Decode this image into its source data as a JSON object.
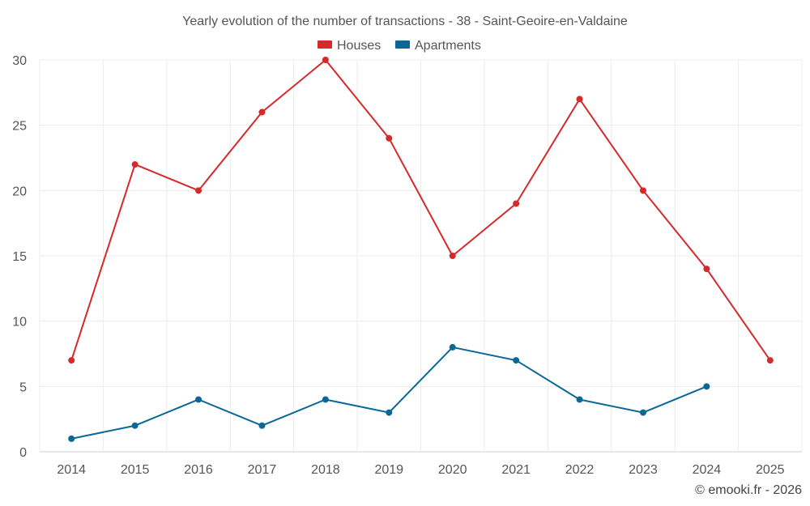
{
  "chart_data": {
    "type": "line",
    "title": "Yearly evolution of the number of transactions - 38 - Saint-Geoire-en-Valdaine",
    "xlabel": "",
    "ylabel": "",
    "categories": [
      "2014",
      "2015",
      "2016",
      "2017",
      "2018",
      "2019",
      "2020",
      "2021",
      "2022",
      "2023",
      "2024",
      "2025"
    ],
    "ylim": [
      0,
      30
    ],
    "yticks": [
      "0",
      "5",
      "10",
      "15",
      "20",
      "25",
      "30"
    ],
    "grid": true,
    "legend_position": "top-center",
    "series": [
      {
        "name": "Houses",
        "color": "#d42a2a",
        "values": [
          7,
          22,
          20,
          26,
          30,
          24,
          15,
          19,
          27,
          20,
          14,
          7
        ]
      },
      {
        "name": "Apartments",
        "color": "#0b6796",
        "values": [
          1,
          2,
          4,
          2,
          4,
          3,
          8,
          7,
          4,
          3,
          5,
          null
        ]
      }
    ]
  },
  "credit": "© emooki.fr - 2026"
}
